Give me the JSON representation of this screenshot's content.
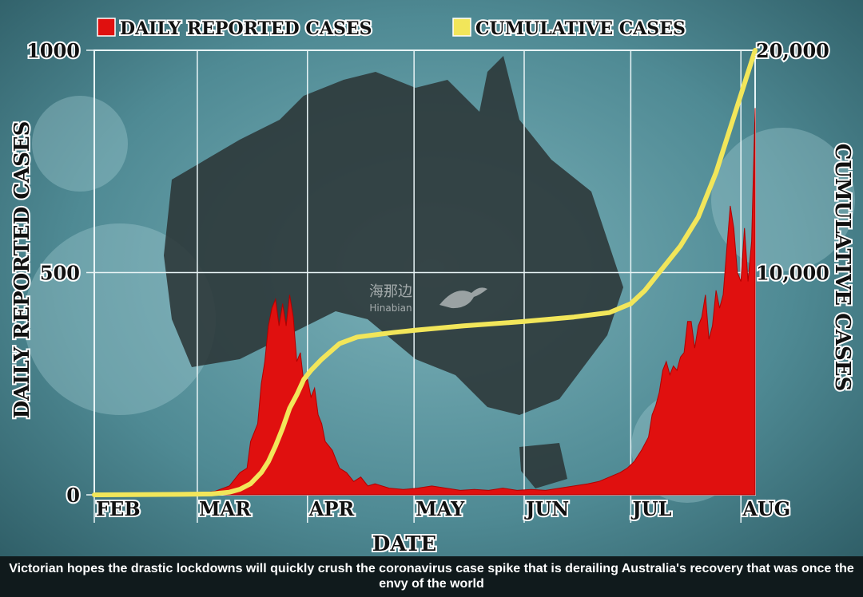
{
  "caption": "Victorian hopes the drastic lockdowns will quickly crush the coronavirus case spike that is derailing Australia's recovery that was once the envy of the world",
  "watermark": {
    "text": "海那边",
    "sub": "Hinabian"
  },
  "colors": {
    "daily": "#e0100f",
    "cumulative": "#f2e65a",
    "grid": "#e8f4f6",
    "text": "#111111",
    "label_bg": "#ffffff"
  },
  "chart_data": {
    "type": "area",
    "legend": [
      {
        "name": "DAILY REPORTED CASES",
        "color": "#e0100f"
      },
      {
        "name": "CUMULATIVE CASES",
        "color": "#f2e65a"
      }
    ],
    "legend_position": "top",
    "xlabel": "DATE",
    "ylabel_left": "DAILY REPORTED CASES",
    "ylabel_right": "CUMULATIVE CASES",
    "x_ticks": [
      "FEB",
      "MAR",
      "APR",
      "MAY",
      "JUN",
      "JUL",
      "AUG"
    ],
    "y_left_ticks": [
      "0",
      "500",
      "1000"
    ],
    "y_right_ticks": [
      "10,000",
      "20,000"
    ],
    "ylim_left": [
      0,
      1000
    ],
    "ylim_right": [
      0,
      20000
    ],
    "grid": true,
    "series": [
      {
        "name": "DAILY REPORTED CASES",
        "axis": "left",
        "points": [
          [
            "2020-02-01",
            0
          ],
          [
            "2020-02-20",
            0
          ],
          [
            "2020-03-01",
            2
          ],
          [
            "2020-03-06",
            8
          ],
          [
            "2020-03-10",
            20
          ],
          [
            "2020-03-13",
            50
          ],
          [
            "2020-03-15",
            60
          ],
          [
            "2020-03-16",
            120
          ],
          [
            "2020-03-18",
            160
          ],
          [
            "2020-03-19",
            250
          ],
          [
            "2020-03-20",
            300
          ],
          [
            "2020-03-21",
            380
          ],
          [
            "2020-03-22",
            420
          ],
          [
            "2020-03-23",
            440
          ],
          [
            "2020-03-24",
            380
          ],
          [
            "2020-03-25",
            430
          ],
          [
            "2020-03-26",
            380
          ],
          [
            "2020-03-27",
            450
          ],
          [
            "2020-03-28",
            400
          ],
          [
            "2020-03-29",
            300
          ],
          [
            "2020-03-30",
            320
          ],
          [
            "2020-03-31",
            250
          ],
          [
            "2020-04-01",
            260
          ],
          [
            "2020-04-02",
            220
          ],
          [
            "2020-04-03",
            240
          ],
          [
            "2020-04-04",
            180
          ],
          [
            "2020-04-05",
            160
          ],
          [
            "2020-04-06",
            120
          ],
          [
            "2020-04-07",
            110
          ],
          [
            "2020-04-08",
            100
          ],
          [
            "2020-04-09",
            80
          ],
          [
            "2020-04-10",
            60
          ],
          [
            "2020-04-12",
            50
          ],
          [
            "2020-04-14",
            30
          ],
          [
            "2020-04-16",
            40
          ],
          [
            "2020-04-18",
            20
          ],
          [
            "2020-04-20",
            25
          ],
          [
            "2020-04-24",
            15
          ],
          [
            "2020-04-28",
            12
          ],
          [
            "2020-05-02",
            15
          ],
          [
            "2020-05-06",
            20
          ],
          [
            "2020-05-10",
            15
          ],
          [
            "2020-05-14",
            10
          ],
          [
            "2020-05-18",
            12
          ],
          [
            "2020-05-22",
            10
          ],
          [
            "2020-05-26",
            15
          ],
          [
            "2020-05-30",
            10
          ],
          [
            "2020-06-03",
            12
          ],
          [
            "2020-06-07",
            10
          ],
          [
            "2020-06-11",
            15
          ],
          [
            "2020-06-15",
            20
          ],
          [
            "2020-06-19",
            25
          ],
          [
            "2020-06-22",
            30
          ],
          [
            "2020-06-25",
            40
          ],
          [
            "2020-06-28",
            50
          ],
          [
            "2020-06-30",
            60
          ],
          [
            "2020-07-02",
            75
          ],
          [
            "2020-07-04",
            100
          ],
          [
            "2020-07-06",
            130
          ],
          [
            "2020-07-07",
            180
          ],
          [
            "2020-07-08",
            200
          ],
          [
            "2020-07-09",
            230
          ],
          [
            "2020-07-10",
            280
          ],
          [
            "2020-07-11",
            300
          ],
          [
            "2020-07-12",
            270
          ],
          [
            "2020-07-13",
            290
          ],
          [
            "2020-07-14",
            280
          ],
          [
            "2020-07-15",
            310
          ],
          [
            "2020-07-16",
            320
          ],
          [
            "2020-07-17",
            390
          ],
          [
            "2020-07-18",
            390
          ],
          [
            "2020-07-19",
            330
          ],
          [
            "2020-07-20",
            380
          ],
          [
            "2020-07-21",
            400
          ],
          [
            "2020-07-22",
            450
          ],
          [
            "2020-07-23",
            350
          ],
          [
            "2020-07-24",
            380
          ],
          [
            "2020-07-25",
            460
          ],
          [
            "2020-07-26",
            420
          ],
          [
            "2020-07-27",
            450
          ],
          [
            "2020-07-28",
            550
          ],
          [
            "2020-07-29",
            650
          ],
          [
            "2020-07-30",
            600
          ],
          [
            "2020-07-31",
            500
          ],
          [
            "2020-08-01",
            480
          ],
          [
            "2020-08-02",
            600
          ],
          [
            "2020-08-03",
            480
          ],
          [
            "2020-08-04",
            570
          ],
          [
            "2020-08-05",
            870
          ]
        ]
      },
      {
        "name": "CUMULATIVE CASES",
        "axis": "right",
        "points": [
          [
            "2020-02-01",
            0
          ],
          [
            "2020-02-25",
            20
          ],
          [
            "2020-03-05",
            40
          ],
          [
            "2020-03-10",
            120
          ],
          [
            "2020-03-13",
            250
          ],
          [
            "2020-03-16",
            500
          ],
          [
            "2020-03-19",
            1000
          ],
          [
            "2020-03-21",
            1500
          ],
          [
            "2020-03-23",
            2200
          ],
          [
            "2020-03-25",
            3000
          ],
          [
            "2020-03-27",
            3900
          ],
          [
            "2020-03-29",
            4500
          ],
          [
            "2020-03-31",
            5200
          ],
          [
            "2020-04-02",
            5600
          ],
          [
            "2020-04-05",
            6100
          ],
          [
            "2020-04-10",
            6800
          ],
          [
            "2020-04-15",
            7100
          ],
          [
            "2020-04-20",
            7200
          ],
          [
            "2020-04-25",
            7300
          ],
          [
            "2020-05-01",
            7400
          ],
          [
            "2020-05-15",
            7600
          ],
          [
            "2020-06-01",
            7800
          ],
          [
            "2020-06-15",
            8000
          ],
          [
            "2020-06-25",
            8200
          ],
          [
            "2020-07-01",
            8600
          ],
          [
            "2020-07-05",
            9200
          ],
          [
            "2020-07-10",
            10200
          ],
          [
            "2020-07-15",
            11200
          ],
          [
            "2020-07-20",
            12500
          ],
          [
            "2020-07-25",
            14500
          ],
          [
            "2020-07-30",
            17000
          ],
          [
            "2020-08-05",
            20000
          ]
        ]
      }
    ],
    "x_ticks_dates": [
      "2020-02-01",
      "2020-03-01",
      "2020-04-01",
      "2020-05-01",
      "2020-06-01",
      "2020-07-01",
      "2020-08-01"
    ]
  }
}
